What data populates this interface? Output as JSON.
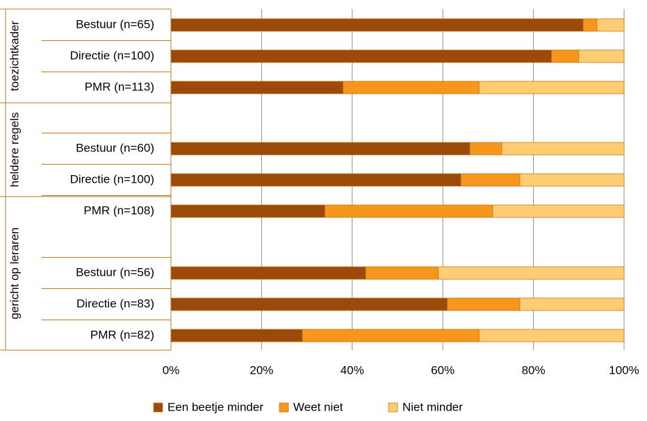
{
  "chart_data": {
    "type": "bar",
    "orientation": "horizontal",
    "stacked": "percent",
    "groups": [
      {
        "name": "toezichtkader",
        "rows": [
          {
            "label": "Bestuur (n=65)",
            "values": [
              91,
              3,
              6
            ]
          },
          {
            "label": "Directie (n=100)",
            "values": [
              84,
              6,
              10
            ]
          },
          {
            "label": "PMR (n=113)",
            "values": [
              38,
              30,
              32
            ]
          }
        ]
      },
      {
        "name": "heldere regels",
        "rows": [
          {
            "label": "Bestuur (n=60)",
            "values": [
              66,
              7,
              27
            ]
          },
          {
            "label": "Directie (n=100)",
            "values": [
              64,
              13,
              23
            ]
          },
          {
            "label": "PMR (n=108)",
            "values": [
              34,
              37,
              29
            ]
          }
        ]
      },
      {
        "name": "gericht op leraren",
        "rows": [
          {
            "label": "Bestuur (n=56)",
            "values": [
              43,
              16,
              41
            ]
          },
          {
            "label": "Directie (n=83)",
            "values": [
              61,
              16,
              23
            ]
          },
          {
            "label": "PMR (n=82)",
            "values": [
              29,
              39,
              32
            ]
          }
        ]
      }
    ],
    "series": [
      {
        "name": "Een beetje minder",
        "color": "#9C4A09"
      },
      {
        "name": "Weet niet",
        "color": "#F7961D"
      },
      {
        "name": "Niet minder",
        "color": "#FDCC73"
      }
    ],
    "x_ticks": [
      "0%",
      "20%",
      "40%",
      "60%",
      "80%",
      "100%"
    ],
    "xlim": [
      0,
      100
    ],
    "grid": true,
    "legend_position": "bottom",
    "border_color": "#C07A1A",
    "grid_color": "#8C8C8C"
  }
}
